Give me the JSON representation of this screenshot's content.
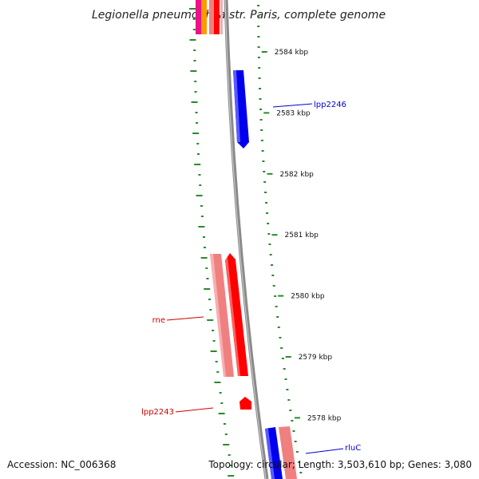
{
  "title": "Legionella pneumophila str. Paris, complete genome",
  "ruler": {
    "unit_suffix": " kbp",
    "ticks": [
      {
        "value": 2584,
        "label": "2584 kbp"
      },
      {
        "value": 2583,
        "label": "2583 kbp"
      },
      {
        "value": 2582,
        "label": "2582 kbp"
      },
      {
        "value": 2581,
        "label": "2581 kbp"
      },
      {
        "value": 2580,
        "label": "2580 kbp"
      },
      {
        "value": 2579,
        "label": "2579 kbp"
      },
      {
        "value": 2578,
        "label": "2578 kbp"
      }
    ]
  },
  "genes": [
    {
      "name": "lpp2246",
      "strand": "forward",
      "color": "#0000ee"
    },
    {
      "name": "rne",
      "strand": "reverse",
      "color": "#cc0000"
    },
    {
      "name": "lpp2243",
      "strand": "reverse",
      "color": "#cc0000"
    },
    {
      "name": "rluC",
      "strand": "forward",
      "color": "#0000cc"
    }
  ],
  "colors": {
    "backbone": "#888888",
    "gc_skew": "#2a8a2a",
    "forward_cds": "#0000ff",
    "reverse_cds": "#ff0000",
    "reverse_cds_light": "#f08080",
    "orange": "#ff9900",
    "magenta": "#ee1188"
  },
  "footer": {
    "accession": "Accession: NC_006368",
    "topology": "Topology: circular; Length: 3,503,610 bp; Genes: 3,080"
  }
}
